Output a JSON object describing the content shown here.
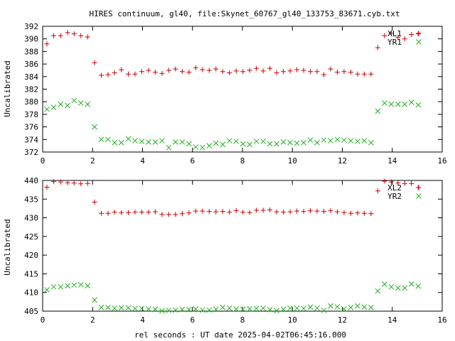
{
  "title": "HIRES continuum, gl40, file:Skynet_60767_gl40_133753_83671.cyb.txt",
  "xlabel": "rel seconds : UT date 2025-04-02T06:45:16.000",
  "colors": {
    "red": "#cc0000",
    "green": "#1fb21f"
  },
  "chart_data": [
    {
      "type": "scatter",
      "ylabel": "Uncalibrated",
      "xlim": [
        0,
        16
      ],
      "ylim": [
        372,
        392
      ],
      "xticks": [
        0,
        2,
        4,
        6,
        8,
        10,
        12,
        14,
        16
      ],
      "yticks": [
        372,
        374,
        376,
        378,
        380,
        382,
        384,
        386,
        388,
        390,
        392
      ],
      "legend_position": "top-right",
      "x": [
        0.17,
        0.44,
        0.72,
        1.0,
        1.26,
        1.53,
        1.8,
        2.08,
        2.35,
        2.62,
        2.88,
        3.15,
        3.43,
        3.7,
        3.97,
        4.24,
        4.51,
        4.78,
        5.05,
        5.32,
        5.59,
        5.86,
        6.13,
        6.4,
        6.67,
        6.94,
        7.21,
        7.48,
        7.75,
        8.02,
        8.29,
        8.56,
        8.83,
        9.1,
        9.37,
        9.64,
        9.91,
        10.18,
        10.45,
        10.72,
        10.99,
        11.26,
        11.53,
        11.8,
        12.07,
        12.34,
        12.61,
        12.88,
        13.15,
        13.42,
        13.69,
        13.96,
        14.23,
        14.5,
        14.77,
        15.04
      ],
      "series": [
        {
          "name": "XL1",
          "color": "#cc0000",
          "marker": "plus",
          "values": [
            389.2,
            390.5,
            390.5,
            391.0,
            390.8,
            390.5,
            390.3,
            386.2,
            384.2,
            384.3,
            384.6,
            385.1,
            384.4,
            384.4,
            384.8,
            385.0,
            384.7,
            384.5,
            385.0,
            385.2,
            384.8,
            384.7,
            385.4,
            385.1,
            385.0,
            385.2,
            384.8,
            384.6,
            384.9,
            384.8,
            385.0,
            385.3,
            384.9,
            385.3,
            384.6,
            384.8,
            384.9,
            385.1,
            385.0,
            384.8,
            384.8,
            384.3,
            385.2,
            384.7,
            384.8,
            384.7,
            384.4,
            384.4,
            384.4,
            388.6,
            390.5,
            390.9,
            390.2,
            390.0,
            390.7,
            390.8
          ]
        },
        {
          "name": "YR1",
          "color": "#1fb21f",
          "marker": "x",
          "values": [
            378.8,
            379.1,
            379.6,
            379.4,
            380.2,
            379.8,
            379.6,
            376.0,
            374.0,
            374.0,
            373.5,
            373.5,
            374.1,
            373.8,
            373.7,
            373.6,
            373.6,
            373.8,
            372.7,
            373.6,
            373.6,
            373.3,
            372.8,
            372.7,
            373.0,
            373.4,
            373.2,
            373.8,
            373.7,
            373.3,
            373.2,
            373.7,
            373.7,
            373.3,
            373.3,
            373.6,
            373.5,
            373.4,
            373.5,
            373.9,
            373.5,
            373.9,
            373.8,
            374.0,
            373.9,
            373.8,
            373.7,
            373.8,
            373.5,
            378.5,
            379.8,
            379.6,
            379.6,
            379.6,
            379.9,
            379.5
          ]
        }
      ]
    },
    {
      "type": "scatter",
      "ylabel": "Uncalibrated",
      "xlim": [
        0,
        16
      ],
      "ylim": [
        405,
        440
      ],
      "xticks": [
        0,
        2,
        4,
        6,
        8,
        10,
        12,
        14,
        16
      ],
      "yticks": [
        405,
        410,
        415,
        420,
        425,
        430,
        435,
        440
      ],
      "legend_position": "top-right",
      "x": [
        0.17,
        0.44,
        0.72,
        1.0,
        1.26,
        1.53,
        1.8,
        2.08,
        2.35,
        2.62,
        2.88,
        3.15,
        3.43,
        3.7,
        3.97,
        4.24,
        4.51,
        4.78,
        5.05,
        5.32,
        5.59,
        5.86,
        6.13,
        6.4,
        6.67,
        6.94,
        7.21,
        7.48,
        7.75,
        8.02,
        8.29,
        8.56,
        8.83,
        9.1,
        9.37,
        9.64,
        9.91,
        10.18,
        10.45,
        10.72,
        10.99,
        11.26,
        11.53,
        11.8,
        12.07,
        12.34,
        12.61,
        12.88,
        13.15,
        13.42,
        13.69,
        13.96,
        14.23,
        14.5,
        14.77,
        15.04
      ],
      "series": [
        {
          "name": "XL2",
          "color": "#cc0000",
          "marker": "plus",
          "values": [
            438.2,
            439.7,
            439.6,
            439.4,
            439.3,
            439.1,
            439.2,
            434.2,
            431.2,
            431.2,
            431.5,
            431.4,
            431.4,
            431.5,
            431.5,
            431.5,
            431.6,
            430.9,
            430.9,
            430.9,
            431.1,
            431.3,
            431.8,
            431.8,
            431.7,
            431.6,
            431.7,
            431.5,
            431.9,
            431.5,
            431.4,
            432.0,
            432.0,
            432.1,
            431.6,
            431.5,
            431.6,
            431.8,
            431.7,
            431.9,
            431.8,
            431.7,
            431.9,
            431.6,
            431.4,
            431.2,
            431.3,
            431.2,
            431.1,
            437.2,
            439.8,
            439.6,
            439.3,
            439.2,
            439.2,
            438.1
          ]
        },
        {
          "name": "YR2",
          "color": "#1fb21f",
          "marker": "x",
          "values": [
            410.7,
            411.5,
            411.5,
            411.8,
            412.0,
            412.1,
            411.8,
            408.0,
            406.0,
            406.0,
            405.8,
            405.9,
            405.9,
            405.7,
            405.7,
            405.6,
            405.5,
            405.1,
            405.2,
            405.3,
            405.5,
            405.4,
            405.6,
            405.3,
            405.3,
            405.5,
            406.0,
            405.8,
            405.6,
            405.5,
            405.6,
            405.7,
            405.8,
            405.4,
            405.1,
            405.5,
            405.8,
            405.8,
            405.7,
            406.1,
            405.8,
            405.2,
            406.4,
            406.2,
            405.6,
            406.0,
            406.4,
            406.1,
            406.0,
            410.4,
            412.2,
            411.5,
            411.2,
            411.2,
            412.3,
            411.7
          ]
        }
      ]
    }
  ]
}
